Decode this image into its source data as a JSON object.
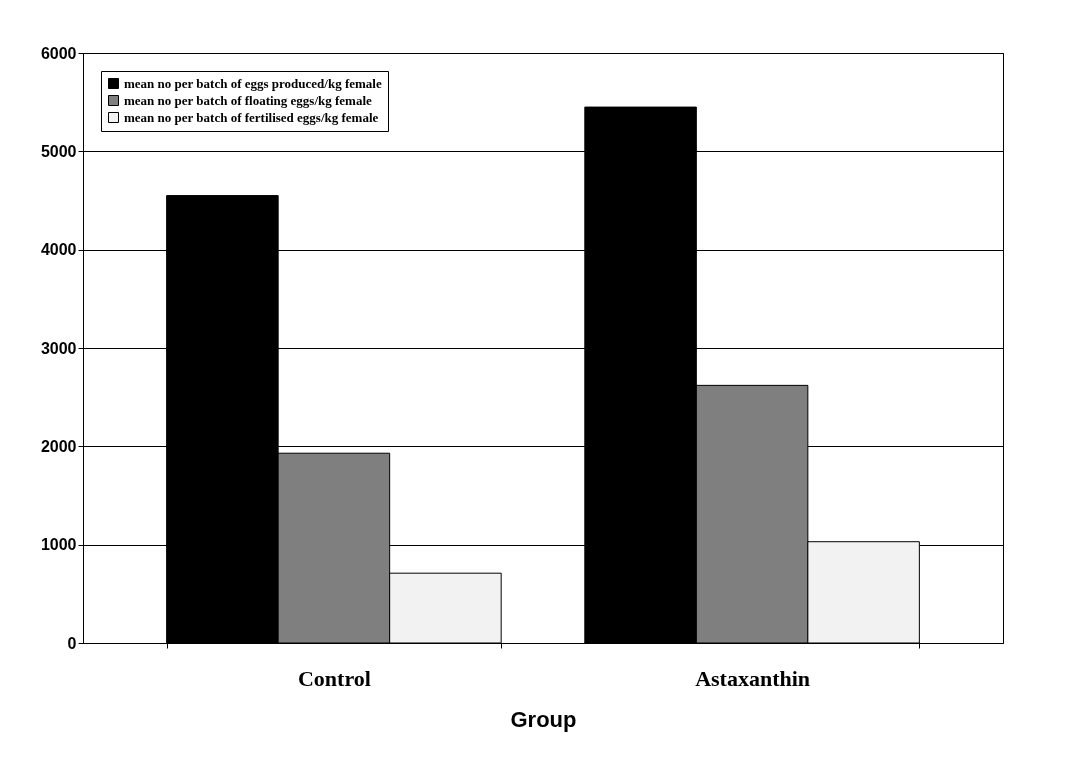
{
  "chart_data": {
    "type": "bar",
    "xlabel": "Group",
    "categories": [
      "Control",
      "Astaxanthin"
    ],
    "series": [
      {
        "name": "mean no per batch of eggs produced/kg female",
        "color": "#000000",
        "values": [
          4550,
          5450
        ]
      },
      {
        "name": "mean no per batch of floating eggs/kg female",
        "color": "#7f7f7f",
        "values": [
          1930,
          2620
        ]
      },
      {
        "name": "mean no per batch of fertilised eggs/kg female",
        "color": "#f2f2f2",
        "values": [
          710,
          1030
        ]
      }
    ],
    "ylim": [
      0,
      6000
    ],
    "yticks": [
      0,
      1000,
      2000,
      3000,
      4000,
      5000,
      6000
    ],
    "grid": "y",
    "legend": "top left"
  }
}
